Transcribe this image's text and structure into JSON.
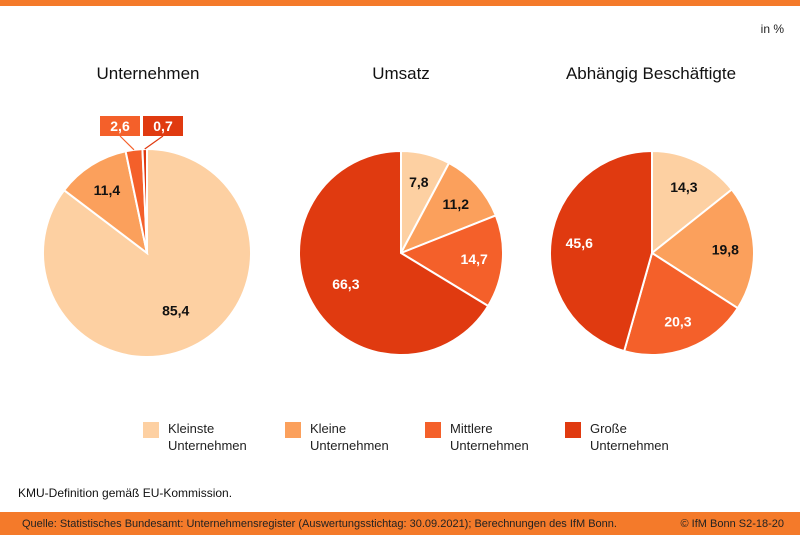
{
  "unit_label": "in %",
  "note": "KMU-Definition gemäß EU-Kommission.",
  "footer": {
    "source": "Quelle: Statistisches Bundesamt: Unternehmensregister (Auswertungsstichtag: 30.09.2021); Berechnungen des IfM Bonn.",
    "credit": "© IfM Bonn  S2-18-20"
  },
  "colors": {
    "accent_bar": "#f47a2a",
    "kleinste": "#fdd0a2",
    "kleine": "#fba05c",
    "mittlere": "#f4602a",
    "grosse": "#e03a10"
  },
  "legend": [
    {
      "label": "Kleinste\nUnternehmen",
      "color": "#fdd0a2"
    },
    {
      "label": "Kleine\nUnternehmen",
      "color": "#fba05c"
    },
    {
      "label": "Mittlere\nUnternehmen",
      "color": "#f4602a"
    },
    {
      "label": "Große\nUnternehmen",
      "color": "#e03a10"
    }
  ],
  "chart_data": [
    {
      "type": "pie",
      "title": "Unternehmen",
      "categories": [
        "Kleinste Unternehmen",
        "Kleine Unternehmen",
        "Mittlere Unternehmen",
        "Große Unternehmen"
      ],
      "values": [
        85.4,
        11.4,
        2.6,
        0.7
      ],
      "labels": [
        "85,4",
        "11,4",
        "2,6",
        "0,7"
      ]
    },
    {
      "type": "pie",
      "title": "Umsatz",
      "categories": [
        "Kleinste Unternehmen",
        "Kleine Unternehmen",
        "Mittlere Unternehmen",
        "Große Unternehmen"
      ],
      "values": [
        7.8,
        11.2,
        14.7,
        66.3
      ],
      "labels": [
        "7,8",
        "11,2",
        "14,7",
        "66,3"
      ]
    },
    {
      "type": "pie",
      "title": "Abhängig Beschäftigte",
      "categories": [
        "Kleinste Unternehmen",
        "Kleine Unternehmen",
        "Mittlere Unternehmen",
        "Große Unternehmen"
      ],
      "values": [
        14.3,
        19.8,
        20.3,
        45.6
      ],
      "labels": [
        "14,3",
        "19,8",
        "20,3",
        "45,6"
      ]
    }
  ]
}
